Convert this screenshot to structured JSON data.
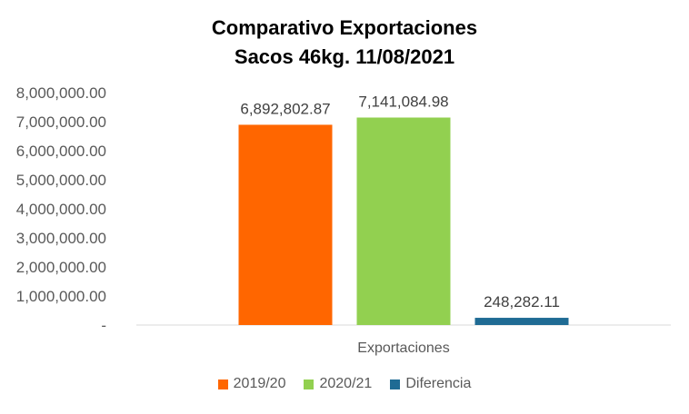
{
  "chart_data": {
    "type": "bar",
    "title": "Comparativo  Exportaciones",
    "subtitle": "Sacos 46kg. 11/08/2021",
    "categories": [
      "Exportaciones"
    ],
    "series": [
      {
        "name": "2019/20",
        "values": [
          6892802.87
        ],
        "label": "6,892,802.87",
        "color": "#ff6600"
      },
      {
        "name": "2020/21",
        "values": [
          7141084.98
        ],
        "label": "7,141,084.98",
        "color": "#92d050"
      },
      {
        "name": "Diferencia",
        "values": [
          248282.11
        ],
        "label": "248,282.11",
        "color": "#1f6b94"
      }
    ],
    "ylim": [
      0,
      8000000
    ],
    "yticks": [
      {
        "value": 8000000,
        "label": "8,000,000.00"
      },
      {
        "value": 7000000,
        "label": "7,000,000.00"
      },
      {
        "value": 6000000,
        "label": "6,000,000.00"
      },
      {
        "value": 5000000,
        "label": "5,000,000.00"
      },
      {
        "value": 4000000,
        "label": "4,000,000.00"
      },
      {
        "value": 3000000,
        "label": "3,000,000.00"
      },
      {
        "value": 2000000,
        "label": "2,000,000.00"
      },
      {
        "value": 1000000,
        "label": "1,000,000.00"
      },
      {
        "value": 0,
        "label": "-"
      }
    ],
    "grid": false,
    "legend_position": "bottom"
  }
}
